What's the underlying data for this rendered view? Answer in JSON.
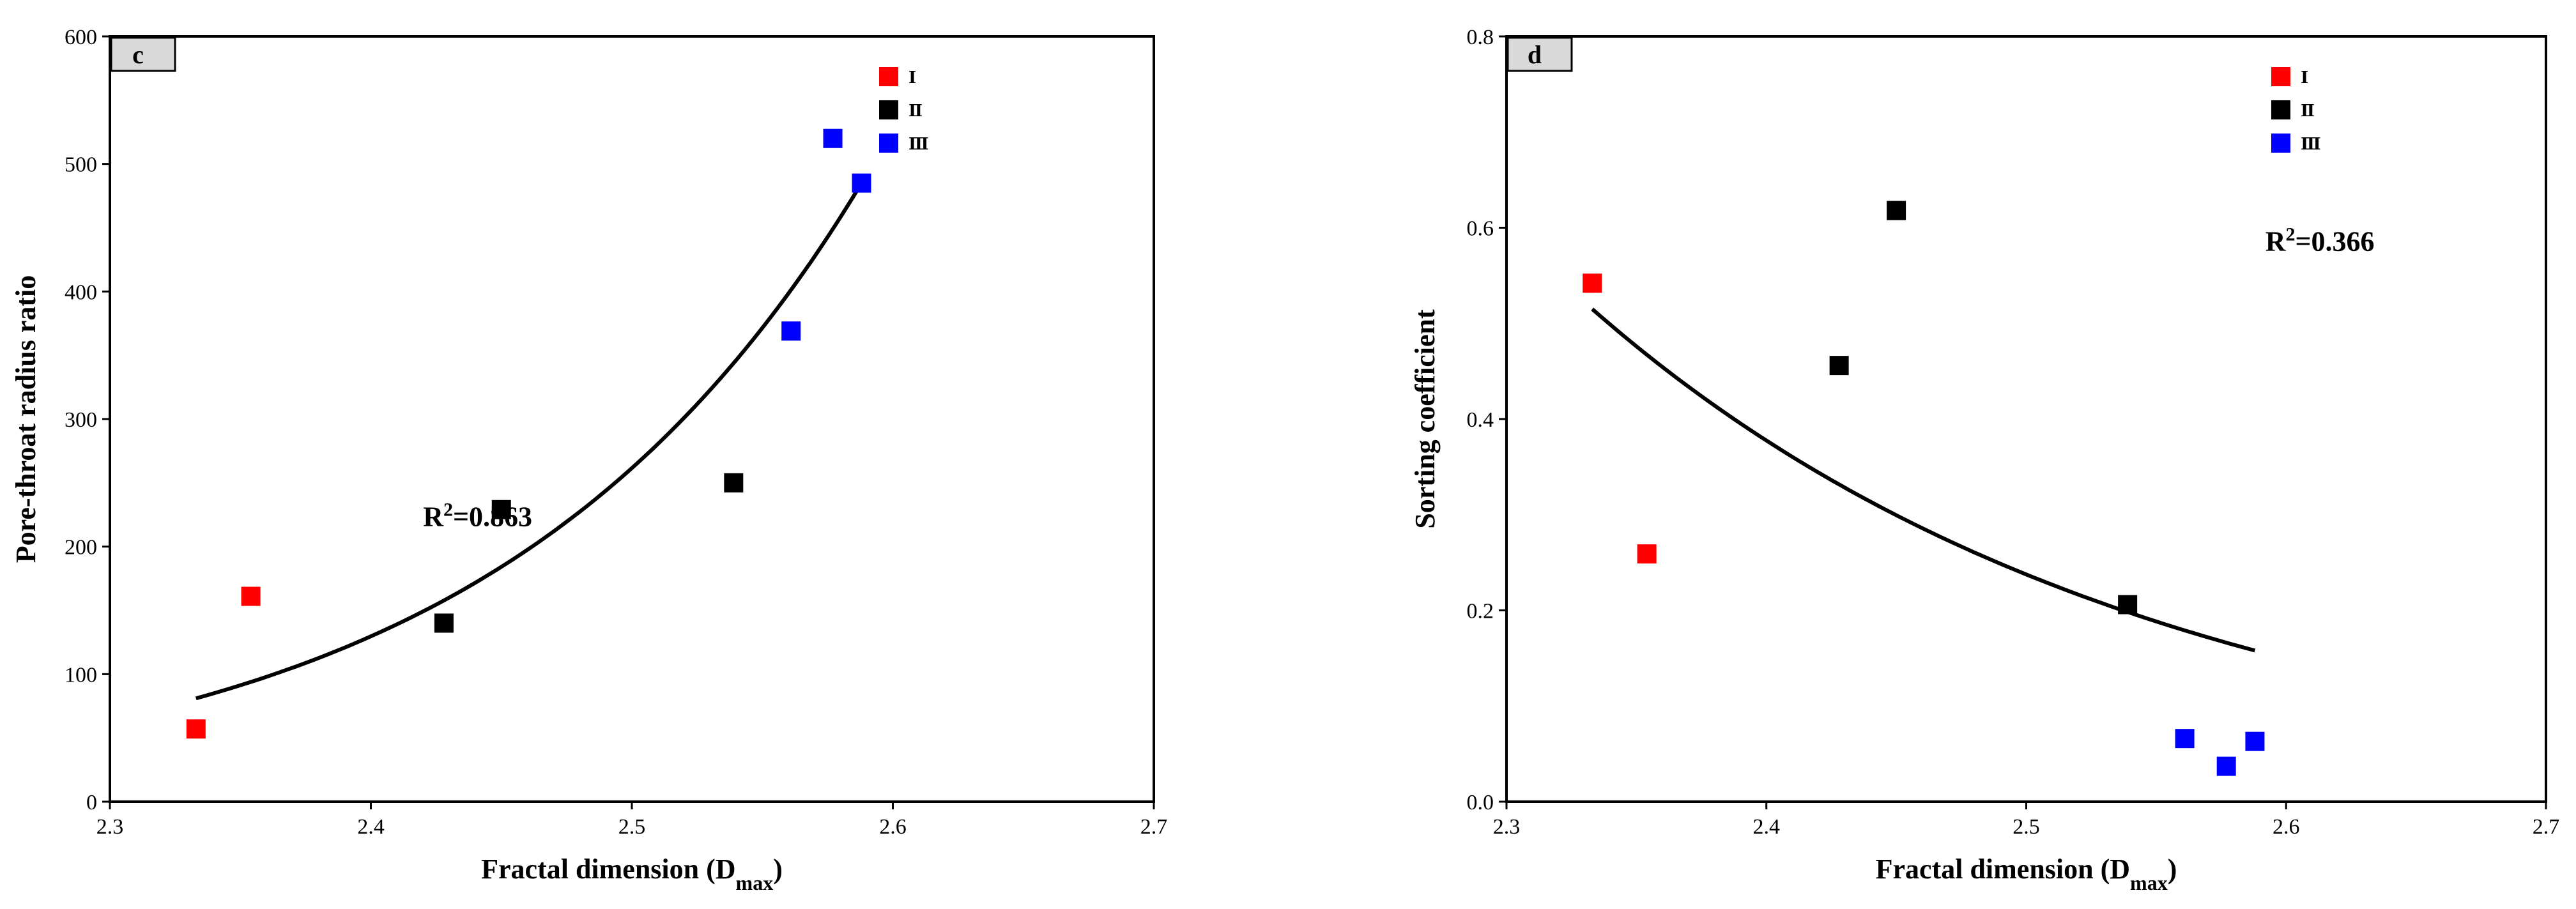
{
  "chart_data": [
    {
      "panel": "c",
      "type": "scatter",
      "xlabel": "Fractal dimension (D",
      "xlabel_sub": "max",
      "xlabel_tail": ")",
      "ylabel": "Pore-throat radius ratio",
      "xlim": [
        2.3,
        2.7
      ],
      "ylim": [
        0,
        600
      ],
      "xticks": [
        "2.3",
        "2.4",
        "2.5",
        "2.6",
        "2.7"
      ],
      "yticks": [
        "0",
        "100",
        "200",
        "300",
        "400",
        "500",
        "600"
      ],
      "legend_position": "top-right",
      "series": [
        {
          "name": "Ⅰ",
          "color": "#ff0000",
          "points": [
            [
              2.333,
              57
            ],
            [
              2.354,
              161
            ]
          ]
        },
        {
          "name": "Ⅱ",
          "color": "#000000",
          "points": [
            [
              2.428,
              140
            ],
            [
              2.45,
              229
            ],
            [
              2.539,
              250
            ]
          ]
        },
        {
          "name": "Ⅲ",
          "color": "#0000ff",
          "points": [
            [
              2.561,
              369
            ],
            [
              2.577,
              520
            ],
            [
              2.588,
              485
            ]
          ]
        }
      ],
      "trendline": {
        "type": "exponential",
        "x_range": [
          2.333,
          2.588
        ],
        "y_start": 81,
        "y_end": 485
      },
      "annotation": {
        "base": "R",
        "sup": "2",
        "text": "=0.863"
      }
    },
    {
      "panel": "d",
      "type": "scatter",
      "xlabel": "Fractal dimension (D",
      "xlabel_sub": "max",
      "xlabel_tail": ")",
      "ylabel": "Sorting coefficient",
      "xlim": [
        2.3,
        2.7
      ],
      "ylim": [
        0,
        0.8
      ],
      "xticks": [
        "2.3",
        "2.4",
        "2.5",
        "2.6",
        "2.7"
      ],
      "yticks": [
        "0.0",
        "0.2",
        "0.4",
        "0.6",
        "0.8"
      ],
      "legend_position": "top-right",
      "series": [
        {
          "name": "Ⅰ",
          "color": "#ff0000",
          "points": [
            [
              2.333,
              0.542
            ],
            [
              2.354,
              0.259
            ]
          ]
        },
        {
          "name": "Ⅱ",
          "color": "#000000",
          "points": [
            [
              2.428,
              0.456
            ],
            [
              2.45,
              0.618
            ],
            [
              2.539,
              0.206
            ]
          ]
        },
        {
          "name": "Ⅲ",
          "color": "#0000ff",
          "points": [
            [
              2.561,
              0.066
            ],
            [
              2.577,
              0.037
            ],
            [
              2.588,
              0.063
            ]
          ]
        }
      ],
      "trendline": {
        "type": "exponential",
        "x_range": [
          2.333,
          2.588
        ],
        "y_start": 0.515,
        "y_end": 0.158
      },
      "annotation": {
        "base": "R",
        "sup": "2",
        "text": "=0.366"
      }
    }
  ]
}
